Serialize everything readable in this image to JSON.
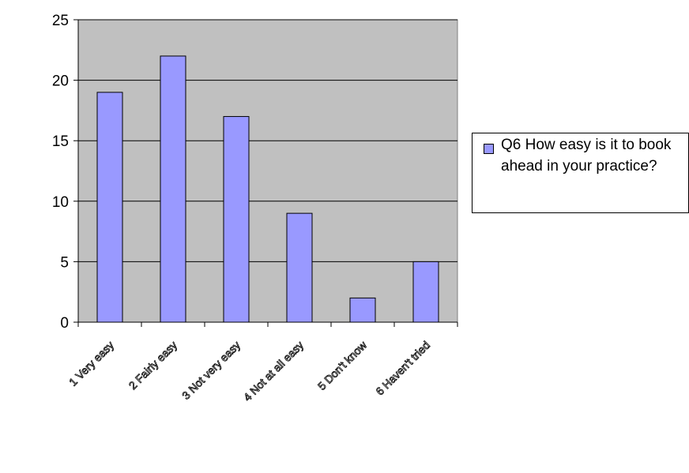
{
  "chart_data": {
    "type": "bar",
    "categories": [
      "1 Very easy",
      "2 Fairly easy",
      "3 Not very easy",
      "4 Not at all easy",
      "5 Don't know",
      "6 Haven't tried"
    ],
    "series": [
      {
        "name": "Q6 How easy is it to book ahead in your practice?",
        "values": [
          19,
          22,
          17,
          9,
          2,
          5
        ]
      }
    ],
    "ylim": [
      0,
      25
    ],
    "yticks": [
      0,
      5,
      10,
      15,
      20,
      25
    ],
    "grid": true,
    "legend": "right",
    "colors": {
      "bar": "#9999ff",
      "plot_bg": "#c0c0c0",
      "grid": "#000000"
    }
  }
}
